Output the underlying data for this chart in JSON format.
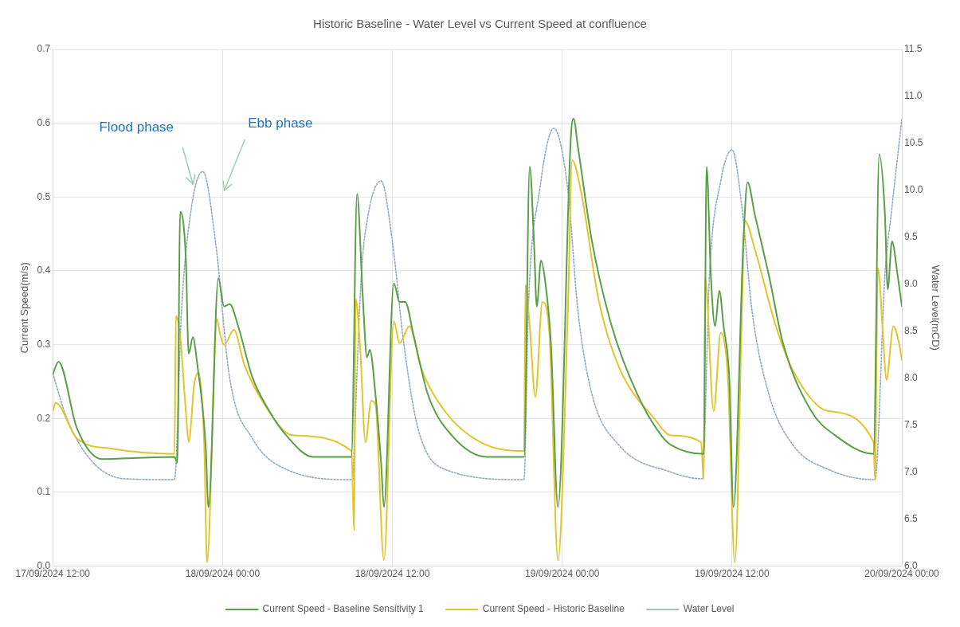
{
  "chart_data": {
    "type": "line",
    "title": "Historic Baseline - Water Level vs Current Speed at confluence",
    "ylabel": "Current Speed(m/s)",
    "y2label": "Water Level(mCD)",
    "xlim": [
      "2024-09-17T12:00",
      "2024-09-20T00:00"
    ],
    "xticks": [
      {
        "value": "2024-09-17T12:00",
        "label": "17/09/2024 12:00"
      },
      {
        "value": "2024-09-18T00:00",
        "label": "18/09/2024 00:00"
      },
      {
        "value": "2024-09-18T12:00",
        "label": "18/09/2024 12:00"
      },
      {
        "value": "2024-09-19T00:00",
        "label": "19/09/2024 00:00"
      },
      {
        "value": "2024-09-19T12:00",
        "label": "19/09/2024 12:00"
      },
      {
        "value": "2024-09-20T00:00",
        "label": "20/09/2024 00:00"
      }
    ],
    "ylim": [
      0,
      0.7
    ],
    "yticks": [
      {
        "value": 0,
        "label": "0.0"
      },
      0.1,
      0.2,
      0.3,
      0.4,
      0.5,
      0.6,
      0.7
    ],
    "y2lim": [
      6,
      11.5
    ],
    "y2ticks": [
      {
        "value": 6,
        "label": "6.0"
      },
      6.5,
      {
        "value": 7,
        "label": "7.0"
      },
      7.5,
      {
        "value": 8,
        "label": "8.0"
      },
      8.5,
      {
        "value": 9,
        "label": "9.0"
      },
      9.5,
      {
        "value": 10,
        "label": "10.0"
      },
      10.5,
      {
        "value": 11,
        "label": "11.0"
      },
      11.5
    ],
    "grid": true,
    "legend": "bottom",
    "marker": "none",
    "series": [
      {
        "name": "Current Speed - Baseline Sensitivity 1",
        "color": "#5a9e48",
        "line_style": "solid",
        "x": [
          "2024-09-17T12:00",
          "2024-09-17T12:24",
          "2024-09-17T13:42",
          "2024-09-17T15:30",
          "2024-09-17T20:36",
          "2024-09-17T20:48",
          "2024-09-17T21:00",
          "2024-09-17T21:24",
          "2024-09-17T21:36",
          "2024-09-17T21:54",
          "2024-09-17T22:12",
          "2024-09-17T22:48",
          "2024-09-17T23:00",
          "2024-09-17T23:42",
          "2024-09-18T00:06",
          "2024-09-18T00:30",
          "2024-09-18T01:06",
          "2024-09-18T02:06",
          "2024-09-18T03:18",
          "2024-09-18T04:30",
          "2024-09-18T06:24",
          "2024-09-18T09:06",
          "2024-09-18T09:30",
          "2024-09-18T09:54",
          "2024-09-18T10:12",
          "2024-09-18T10:24",
          "2024-09-18T10:48",
          "2024-09-18T11:12",
          "2024-09-18T11:24",
          "2024-09-18T12:06",
          "2024-09-18T12:30",
          "2024-09-18T12:54",
          "2024-09-18T13:30",
          "2024-09-18T14:30",
          "2024-09-18T16:12",
          "2024-09-18T18:42",
          "2024-09-18T21:18",
          "2024-09-18T21:42",
          "2024-09-18T22:00",
          "2024-09-18T22:12",
          "2024-09-18T22:30",
          "2024-09-18T22:48",
          "2024-09-18T23:12",
          "2024-09-18T23:42",
          "2024-09-19T00:36",
          "2024-09-19T00:48",
          "2024-09-19T01:06",
          "2024-09-19T02:06",
          "2024-09-19T03:30",
          "2024-09-19T05:18",
          "2024-09-19T07:00",
          "2024-09-19T07:42",
          "2024-09-19T10:00",
          "2024-09-19T10:12",
          "2024-09-19T10:30",
          "2024-09-19T10:48",
          "2024-09-19T11:06",
          "2024-09-19T11:24",
          "2024-09-19T11:48",
          "2024-09-19T12:06",
          "2024-09-19T12:48",
          "2024-09-19T13:06",
          "2024-09-19T13:36",
          "2024-09-19T14:36",
          "2024-09-19T15:36",
          "2024-09-19T17:36",
          "2024-09-19T19:18",
          "2024-09-19T22:00",
          "2024-09-19T22:24",
          "2024-09-19T22:48",
          "2024-09-19T23:00",
          "2024-09-19T23:18",
          "2024-09-19T23:42",
          "2024-09-20T00:00"
        ],
        "values": [
          0.26,
          0.277,
          0.187,
          0.145,
          0.148,
          0.14,
          0.48,
          0.417,
          0.288,
          0.31,
          0.275,
          0.164,
          0.08,
          0.39,
          0.352,
          0.355,
          0.325,
          0.256,
          0.21,
          0.177,
          0.148,
          0.148,
          0.504,
          0.366,
          0.283,
          0.293,
          0.233,
          0.14,
          0.08,
          0.383,
          0.358,
          0.358,
          0.312,
          0.233,
          0.177,
          0.148,
          0.148,
          0.541,
          0.44,
          0.352,
          0.414,
          0.385,
          0.302,
          0.08,
          0.578,
          0.606,
          0.569,
          0.44,
          0.325,
          0.233,
          0.177,
          0.164,
          0.152,
          0.541,
          0.394,
          0.325,
          0.373,
          0.325,
          0.256,
          0.08,
          0.44,
          0.52,
          0.477,
          0.394,
          0.302,
          0.21,
          0.177,
          0.152,
          0.558,
          0.477,
          0.375,
          0.44,
          0.394,
          0.352
        ]
      },
      {
        "name": "Current Speed - Historic Baseline",
        "color": "#e3c42c",
        "line_style": "solid",
        "x": [
          "2024-09-17T12:00",
          "2024-09-17T12:12",
          "2024-09-17T13:42",
          "2024-09-17T16:12",
          "2024-09-17T20:36",
          "2024-09-17T20:42",
          "2024-09-17T21:00",
          "2024-09-17T21:24",
          "2024-09-17T21:36",
          "2024-09-17T22:00",
          "2024-09-17T22:18",
          "2024-09-17T22:42",
          "2024-09-17T22:54",
          "2024-09-17T23:36",
          "2024-09-17T23:48",
          "2024-09-18T00:06",
          "2024-09-18T00:48",
          "2024-09-18T01:30",
          "2024-09-18T02:48",
          "2024-09-18T05:00",
          "2024-09-18T09:06",
          "2024-09-18T09:18",
          "2024-09-18T09:24",
          "2024-09-18T09:42",
          "2024-09-18T10:06",
          "2024-09-18T10:30",
          "2024-09-18T10:48",
          "2024-09-18T11:24",
          "2024-09-18T12:06",
          "2024-09-18T12:30",
          "2024-09-18T13:12",
          "2024-09-18T14:00",
          "2024-09-18T15:42",
          "2024-09-18T18:12",
          "2024-09-18T21:18",
          "2024-09-18T21:24",
          "2024-09-18T21:42",
          "2024-09-18T22:06",
          "2024-09-18T22:36",
          "2024-09-18T23:06",
          "2024-09-18T23:42",
          "2024-09-19T00:24",
          "2024-09-19T00:42",
          "2024-09-19T01:18",
          "2024-09-19T02:36",
          "2024-09-19T04:00",
          "2024-09-19T06:30",
          "2024-09-19T07:42",
          "2024-09-19T09:48",
          "2024-09-19T10:00",
          "2024-09-19T10:06",
          "2024-09-19T10:42",
          "2024-09-19T11:12",
          "2024-09-19T11:42",
          "2024-09-19T12:12",
          "2024-09-19T12:42",
          "2024-09-19T12:54",
          "2024-09-19T13:36",
          "2024-09-19T15:06",
          "2024-09-19T16:18",
          "2024-09-19T18:48",
          "2024-09-19T22:00",
          "2024-09-19T22:06",
          "2024-09-19T22:18",
          "2024-09-19T22:42",
          "2024-09-19T22:54",
          "2024-09-19T23:24",
          "2024-09-19T23:48",
          "2024-09-20T00:00"
        ],
        "values": [
          0.21,
          0.221,
          0.173,
          0.159,
          0.152,
          0.339,
          0.312,
          0.21,
          0.168,
          0.247,
          0.262,
          0.164,
          0.005,
          0.335,
          0.316,
          0.3,
          0.32,
          0.275,
          0.224,
          0.177,
          0.156,
          0.049,
          0.362,
          0.302,
          0.168,
          0.224,
          0.219,
          0.008,
          0.332,
          0.302,
          0.325,
          0.27,
          0.21,
          0.168,
          0.156,
          0.381,
          0.325,
          0.229,
          0.358,
          0.312,
          0.008,
          0.348,
          0.55,
          0.51,
          0.358,
          0.27,
          0.2,
          0.177,
          0.168,
          0.118,
          0.39,
          0.21,
          0.316,
          0.256,
          0.005,
          0.348,
          0.468,
          0.43,
          0.325,
          0.265,
          0.21,
          0.168,
          0.118,
          0.404,
          0.302,
          0.252,
          0.325,
          0.302,
          0.279
        ]
      },
      {
        "name": "Water Level",
        "color": "#8fa9c4",
        "line_style": "dotted",
        "axis": "y2",
        "x": [
          "2024-09-17T12:00",
          "2024-09-17T13:00",
          "2024-09-17T14:48",
          "2024-09-17T17:06",
          "2024-09-17T20:36",
          "2024-09-17T21:06",
          "2024-09-17T21:48",
          "2024-09-17T22:36",
          "2024-09-17T23:30",
          "2024-09-18T00:30",
          "2024-09-18T02:06",
          "2024-09-18T04:30",
          "2024-09-18T09:12",
          "2024-09-18T09:18",
          "2024-09-18T09:48",
          "2024-09-18T10:18",
          "2024-09-18T11:12",
          "2024-09-18T12:00",
          "2024-09-18T12:48",
          "2024-09-18T13:48",
          "2024-09-18T15:42",
          "2024-09-18T21:18",
          "2024-09-18T21:36",
          "2024-09-18T22:24",
          "2024-09-18T23:24",
          "2024-09-19T00:24",
          "2024-09-19T01:06",
          "2024-09-19T02:06",
          "2024-09-19T04:00",
          "2024-09-19T07:42",
          "2024-09-19T09:54",
          "2024-09-19T10:24",
          "2024-09-19T11:12",
          "2024-09-19T12:00",
          "2024-09-19T12:42",
          "2024-09-19T13:24",
          "2024-09-19T14:36",
          "2024-09-19T16:18",
          "2024-09-19T18:48",
          "2024-09-19T22:06",
          "2024-09-19T22:48",
          "2024-09-19T23:18",
          "2024-09-20T00:00"
        ],
        "values": [
          8.05,
          7.57,
          7.11,
          6.93,
          6.92,
          8.73,
          9.82,
          10.2,
          9.45,
          8.0,
          7.36,
          7.03,
          6.92,
          7.29,
          9.09,
          9.75,
          10.1,
          9.45,
          8.37,
          7.47,
          7.03,
          6.92,
          8.73,
          10.0,
          10.66,
          10.0,
          8.73,
          7.83,
          7.29,
          7.0,
          6.93,
          9.09,
          10.1,
          10.43,
          9.82,
          8.73,
          7.83,
          7.29,
          7.03,
          6.92,
          9.09,
          9.82,
          10.76
        ]
      }
    ],
    "annotations": [
      "Flood phase",
      "Ebb phase"
    ]
  }
}
